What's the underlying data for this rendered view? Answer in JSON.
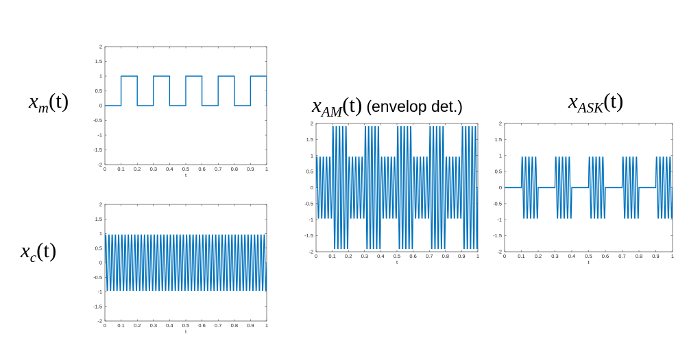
{
  "labels": {
    "xm": {
      "var": "x",
      "sub": "m",
      "arg": "(t)"
    },
    "xc": {
      "var": "x",
      "sub": "c",
      "arg": "(t)"
    },
    "xam": {
      "var": "x",
      "sub": "AM",
      "arg": "(t)",
      "note": "(envelop det.)"
    },
    "xask": {
      "var": "x",
      "sub": "ASK",
      "arg": "(t)"
    }
  },
  "colors": {
    "line": "#0072BD",
    "axes": "#262626",
    "background": "#ffffff"
  },
  "chart_data": [
    {
      "id": "xm",
      "type": "line",
      "signal": "square",
      "square_period": 0.2,
      "high_intervals": [
        [
          0.1,
          0.2
        ],
        [
          0.3,
          0.4
        ],
        [
          0.5,
          0.6
        ],
        [
          0.7,
          0.8
        ],
        [
          0.9,
          1.0
        ]
      ],
      "xlabel": "t",
      "xlim": [
        0,
        1
      ],
      "ylim": [
        -2,
        2
      ],
      "xticks": [
        "0",
        "0.1",
        "0.2",
        "0.3",
        "0.4",
        "0.5",
        "0.6",
        "0.7",
        "0.8",
        "0.9",
        "1"
      ],
      "yticks": [
        "-2",
        "-1.5",
        "-1",
        "-0.5",
        "0",
        "0.5",
        "1",
        "1.5",
        "2"
      ]
    },
    {
      "id": "xc",
      "type": "line",
      "signal": "carrier",
      "carrier_cycles": 50,
      "amplitude": 1,
      "xlabel": "t",
      "xlim": [
        0,
        1
      ],
      "ylim": [
        -2,
        2
      ],
      "xticks": [
        "0",
        "0.1",
        "0.2",
        "0.3",
        "0.4",
        "0.5",
        "0.6",
        "0.7",
        "0.8",
        "0.9",
        "1"
      ],
      "yticks": [
        "-2",
        "-1.5",
        "-1",
        "-0.5",
        "0",
        "0.5",
        "1",
        "1.5",
        "2"
      ]
    },
    {
      "id": "xam",
      "type": "line",
      "signal": "am",
      "carrier_cycles": 50,
      "envelope_low": 1,
      "envelope_high": 2,
      "high_intervals": [
        [
          0.1,
          0.2
        ],
        [
          0.3,
          0.4
        ],
        [
          0.5,
          0.6
        ],
        [
          0.7,
          0.8
        ],
        [
          0.9,
          1.0
        ]
      ],
      "xlabel": "t",
      "xlim": [
        0,
        1
      ],
      "ylim": [
        -2,
        2
      ],
      "xticks": [
        "0",
        "0.1",
        "0.2",
        "0.3",
        "0.4",
        "0.5",
        "0.6",
        "0.7",
        "0.8",
        "0.9",
        "1"
      ],
      "yticks": [
        "-2",
        "-1.5",
        "-1",
        "-0.5",
        "0",
        "0.5",
        "1",
        "1.5",
        "2"
      ]
    },
    {
      "id": "xask",
      "type": "line",
      "signal": "ask",
      "carrier_cycles": 50,
      "amplitude": 1,
      "high_intervals": [
        [
          0.1,
          0.2
        ],
        [
          0.3,
          0.4
        ],
        [
          0.5,
          0.6
        ],
        [
          0.7,
          0.8
        ],
        [
          0.9,
          1.0
        ]
      ],
      "xlabel": "t",
      "xlim": [
        0,
        1
      ],
      "ylim": [
        -2,
        2
      ],
      "xticks": [
        "0",
        "0.1",
        "0.2",
        "0.3",
        "0.4",
        "0.5",
        "0.6",
        "0.7",
        "0.8",
        "0.9",
        "1"
      ],
      "yticks": [
        "-2",
        "-1.5",
        "-1",
        "-0.5",
        "0",
        "0.5",
        "1",
        "1.5",
        "2"
      ]
    }
  ]
}
